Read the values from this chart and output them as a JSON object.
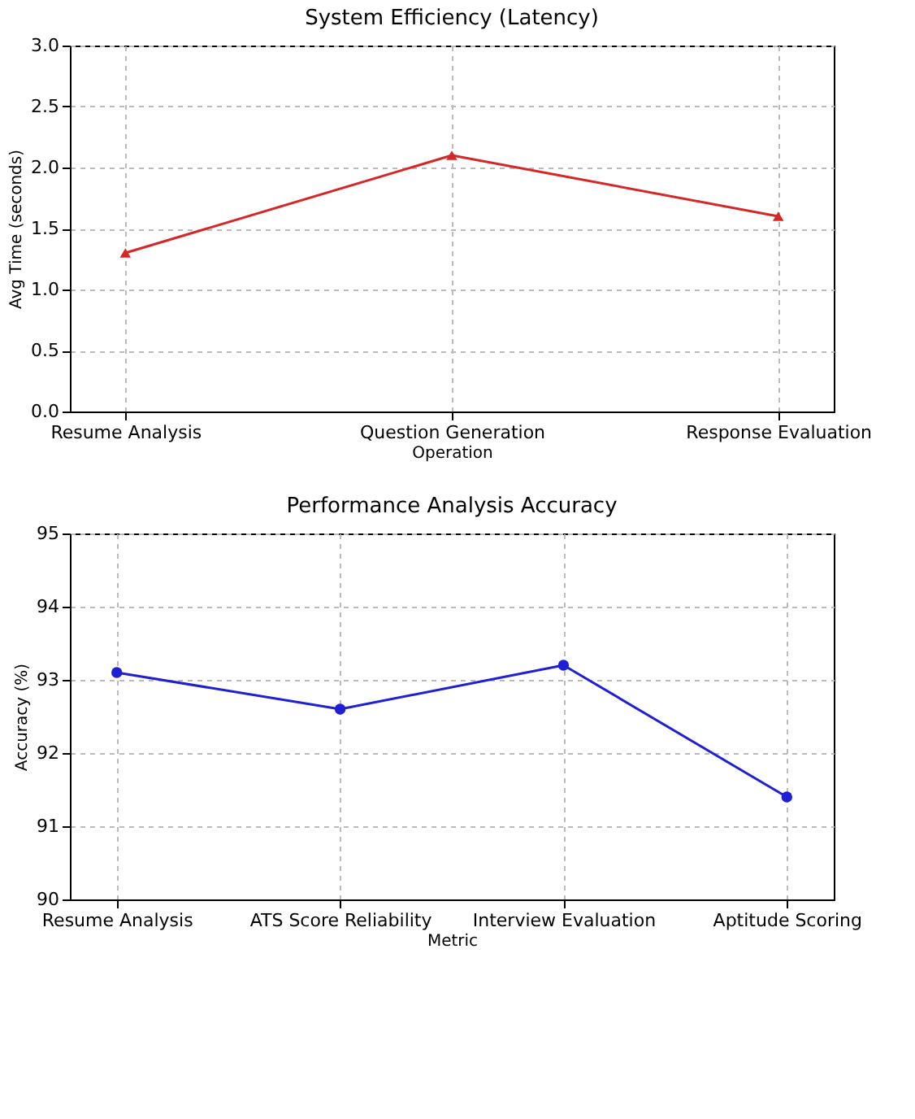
{
  "chart_data": [
    {
      "type": "line",
      "title": "System Efficiency (Latency)",
      "xlabel": "Operation",
      "ylabel": "Avg Time (seconds)",
      "categories": [
        "Resume Analysis",
        "Question Generation",
        "Response Evaluation"
      ],
      "series": [
        {
          "color": "#d62728",
          "values": [
            1.3,
            2.1,
            1.6
          ]
        }
      ],
      "ylim": [
        0,
        3
      ],
      "yticks": [
        {
          "value": 0,
          "label": "0.0"
        },
        {
          "value": 0.5,
          "label": "0.5"
        },
        {
          "value": 1,
          "label": "1.0"
        },
        {
          "value": 1.5,
          "label": "1.5"
        },
        {
          "value": 2,
          "label": "2.0"
        },
        {
          "value": 2.5,
          "label": "2.5"
        },
        {
          "value": 3,
          "label": "3.0"
        }
      ],
      "grid": true,
      "marker": "triangle",
      "line_style": "solid"
    },
    {
      "type": "line",
      "title": "Performance Analysis Accuracy",
      "xlabel": "Metric",
      "ylabel": "Accuracy (%)",
      "categories": [
        "Resume Analysis",
        "ATS Score Reliability",
        "Interview Evaluation",
        "Aptitude Scoring"
      ],
      "series": [
        {
          "color": "#1f1fd6",
          "values": [
            93.1,
            92.6,
            93.2,
            91.4
          ]
        }
      ],
      "ylim": [
        90,
        95
      ],
      "yticks": [
        90,
        91,
        92,
        93,
        94,
        95
      ],
      "grid": true,
      "marker": "circle",
      "line_style": "solid"
    }
  ]
}
